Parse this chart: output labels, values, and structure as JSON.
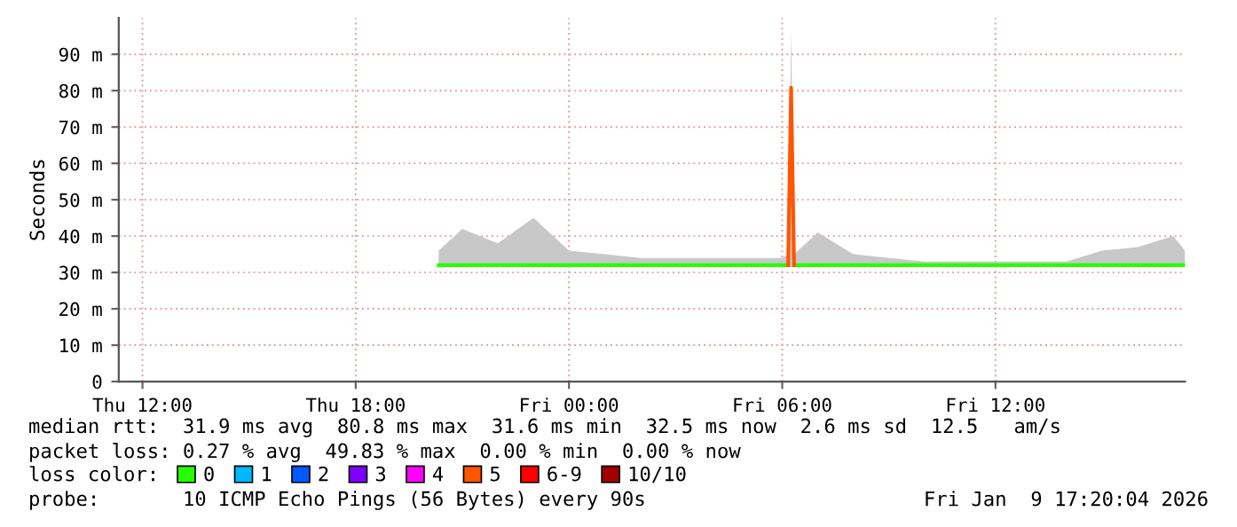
{
  "chart_data": {
    "type": "line",
    "ylabel": "Seconds",
    "x": [
      "2026-01-08T20:20",
      "2026-01-08T21:00",
      "2026-01-08T22:00",
      "2026-01-08T23:00",
      "2026-01-09T00:00",
      "2026-01-09T01:00",
      "2026-01-09T02:00",
      "2026-01-09T03:00",
      "2026-01-09T04:00",
      "2026-01-09T05:00",
      "2026-01-09T06:00",
      "2026-01-09T06:10",
      "2026-01-09T06:15",
      "2026-01-09T06:20",
      "2026-01-09T07:00",
      "2026-01-09T08:00",
      "2026-01-09T09:00",
      "2026-01-09T10:00",
      "2026-01-09T11:00",
      "2026-01-09T12:00",
      "2026-01-09T13:00",
      "2026-01-09T14:00",
      "2026-01-09T15:00",
      "2026-01-09T16:00",
      "2026-01-09T17:00",
      "2026-01-09T17:20"
    ],
    "series": [
      {
        "name": "0",
        "color": "#26ff00",
        "values": [
          32,
          32,
          32,
          32,
          32,
          32,
          32,
          32,
          32,
          32,
          32,
          32,
          null,
          32,
          32,
          32,
          32,
          32,
          32,
          32,
          32,
          32,
          32,
          32,
          32,
          32
        ],
        "lower": [
          31.5,
          31.5,
          31.5,
          31.5,
          31.5,
          31.5,
          31.5,
          31.5,
          31.5,
          31.5,
          31.5,
          31.5,
          31.5,
          31.5,
          31.5,
          31.5,
          31.5,
          31.5,
          31.5,
          31.5,
          31.5,
          31.5,
          31.5,
          31.5,
          31.5,
          31.5
        ],
        "upper": [
          36,
          42,
          38,
          45,
          36,
          35,
          34,
          34,
          34,
          34,
          34,
          35,
          97,
          35,
          41,
          35,
          34,
          33,
          33,
          33,
          33,
          33,
          36,
          37,
          40,
          36
        ]
      },
      {
        "name": "1",
        "color": "#00b8ff",
        "values": [
          null,
          null,
          null,
          null,
          null,
          null,
          null,
          null,
          null,
          null,
          null,
          null,
          null,
          null,
          null,
          null,
          null,
          null,
          null,
          null,
          null,
          null,
          null,
          null,
          null,
          null
        ]
      },
      {
        "name": "2",
        "color": "#0059ff",
        "values": [
          null,
          null,
          null,
          null,
          null,
          null,
          null,
          null,
          null,
          null,
          null,
          null,
          null,
          null,
          null,
          null,
          null,
          null,
          null,
          null,
          null,
          null,
          null,
          null,
          null,
          null
        ]
      },
      {
        "name": "3",
        "color": "#7e00ff",
        "values": [
          null,
          null,
          null,
          null,
          null,
          null,
          null,
          null,
          null,
          null,
          null,
          null,
          null,
          null,
          null,
          null,
          null,
          null,
          null,
          null,
          null,
          null,
          null,
          null,
          null,
          null
        ]
      },
      {
        "name": "4",
        "color": "#ff00ff",
        "values": [
          null,
          null,
          null,
          null,
          null,
          null,
          null,
          null,
          null,
          null,
          null,
          null,
          null,
          null,
          null,
          null,
          null,
          null,
          null,
          null,
          null,
          null,
          null,
          null,
          null,
          null
        ]
      },
      {
        "name": "5",
        "color": "#ff5500",
        "values": [
          null,
          null,
          null,
          null,
          null,
          null,
          null,
          null,
          null,
          null,
          null,
          32,
          80.8,
          32,
          null,
          null,
          null,
          null,
          null,
          null,
          null,
          null,
          null,
          null,
          null,
          null
        ]
      },
      {
        "name": "6-9",
        "color": "#ff0000",
        "values": [
          null,
          null,
          null,
          null,
          null,
          null,
          null,
          null,
          null,
          null,
          null,
          null,
          null,
          null,
          null,
          null,
          null,
          null,
          null,
          null,
          null,
          null,
          null,
          null,
          null,
          null
        ]
      },
      {
        "name": "10/10",
        "color": "#a10000",
        "values": [
          null,
          null,
          null,
          null,
          null,
          null,
          null,
          null,
          null,
          null,
          null,
          null,
          null,
          null,
          null,
          null,
          null,
          null,
          null,
          null,
          null,
          null,
          null,
          null,
          null,
          null
        ]
      }
    ],
    "xlim": [
      "2026-01-08T11:20",
      "2026-01-09T17:20"
    ],
    "xticks": [
      {
        "value": "2026-01-08T12:00",
        "label": "Thu 12:00"
      },
      {
        "value": "2026-01-08T18:00",
        "label": "Thu 18:00"
      },
      {
        "value": "2026-01-09T00:00",
        "label": "Fri 00:00"
      },
      {
        "value": "2026-01-09T06:00",
        "label": "Fri 06:00"
      },
      {
        "value": "2026-01-09T12:00",
        "label": "Fri 12:00"
      }
    ],
    "ylim": [
      0,
      100
    ],
    "yticks": [
      0,
      {
        "value": 10,
        "label": "10 m"
      },
      {
        "value": 20,
        "label": "20 m"
      },
      {
        "value": 30,
        "label": "30 m"
      },
      {
        "value": 40,
        "label": "40 m"
      },
      {
        "value": 50,
        "label": "50 m"
      },
      {
        "value": 60,
        "label": "60 m"
      },
      {
        "value": 70,
        "label": "70 m"
      },
      {
        "value": 80,
        "label": "80 m"
      },
      {
        "value": 90,
        "label": "90 m"
      }
    ],
    "grid": true,
    "legend": "bottom",
    "annotations": [
      "median rtt:  31.9 ms avg  80.8 ms max  31.6 ms min  32.5 ms now  2.6 ms sd  12.5   am/s",
      "packet loss: 0.27 % avg  49.83 % max  0.00 % min  0.00 % now",
      "loss color:",
      "probe:       10 ICMP Echo Pings (56 Bytes) every 90s",
      "Fri Jan  9 17:20:04 2026"
    ]
  }
}
